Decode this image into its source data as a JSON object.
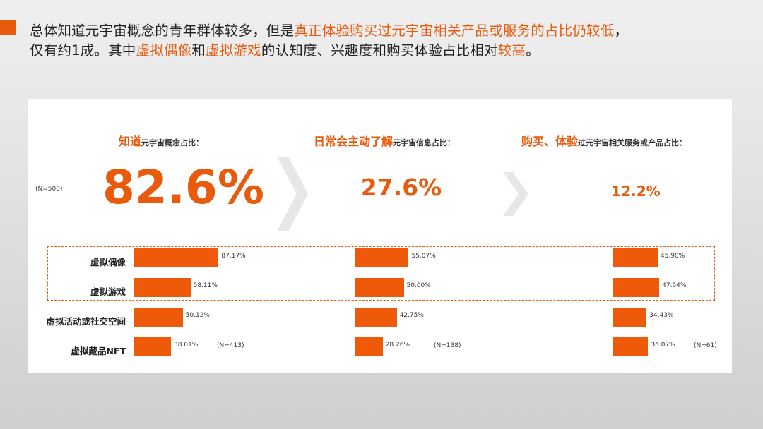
{
  "headline": {
    "part1": "总体知道元宇宙概念的青年群体较多，但是",
    "part2": "真正体验购买过元宇宙相关产品或服务的占比仍较低",
    "part3": "，",
    "part4": "仅有约1成。其中",
    "part5": "虚拟偶像",
    "part6": "和",
    "part7": "虚拟游戏",
    "part8": "的认知度、兴趣度和购买体验占比相对",
    "part9": "较高",
    "part10": "。"
  },
  "sample_total": "(N=500)",
  "stats": [
    {
      "title_big": "知道",
      "title_small": "元宇宙概念占比：",
      "value": "82.6%"
    },
    {
      "title_big": "日常会主动了解",
      "title_small": "元宇宙信息占比：",
      "value": "27.6%"
    },
    {
      "title_big": "购买、体验",
      "title_small": "过元宇宙相关服务或产品占比：",
      "value": "12.2%"
    }
  ],
  "colors": {
    "accent": "#e85a0c",
    "bar": "#ee5a0a"
  },
  "chart_data": {
    "type": "bar",
    "categories": [
      "虚拟偶像",
      "虚拟游戏",
      "虚拟活动或社交空间",
      "虚拟藏品NFT"
    ],
    "groups": [
      {
        "n": "(N=413)",
        "values": [
          87.17,
          58.11,
          50.12,
          38.01
        ],
        "labels": [
          "87.17%",
          "58.11%",
          "50.12%",
          "38.01%"
        ]
      },
      {
        "n": "(N=138)",
        "values": [
          55.07,
          50.0,
          42.75,
          28.26
        ],
        "labels": [
          "55.07%",
          "50.00%",
          "42.75%",
          "28.26%"
        ]
      },
      {
        "n": "(N=61)",
        "values": [
          45.9,
          47.54,
          34.43,
          36.07
        ],
        "labels": [
          "45.90%",
          "47.54%",
          "34.43%",
          "36.07%"
        ]
      }
    ]
  }
}
